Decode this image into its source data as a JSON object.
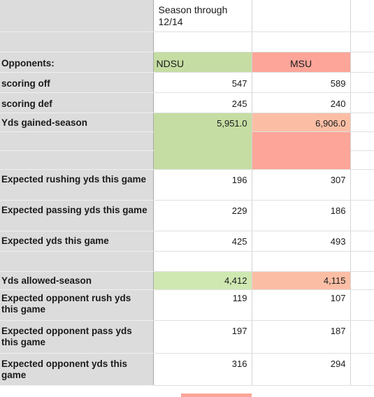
{
  "header": {
    "season_label": "Season through\n12/14"
  },
  "teams": {
    "team1": "NDSU",
    "team2": "MSU"
  },
  "colors": {
    "team1_accent": "#c5dda2",
    "team2_accent": "#fca598",
    "label_column": "#dcdcdc"
  },
  "rows": {
    "opponents_label": "Opponents:",
    "scoring_off": {
      "label": "scoring off",
      "ndsu": "547",
      "msu": "589"
    },
    "scoring_def": {
      "label": "scoring def",
      "ndsu": "245",
      "msu": "240"
    },
    "yds_gained": {
      "label": "Yds gained-season",
      "ndsu": "5,951.0",
      "msu": "6,906.0"
    },
    "exp_rush": {
      "label": "Expected rushing yds this game",
      "ndsu": "196",
      "msu": "307"
    },
    "exp_pass": {
      "label": "Expected passing yds this game",
      "ndsu": "229",
      "msu": "186"
    },
    "exp_yds": {
      "label": "Expected yds this game",
      "ndsu": "425",
      "msu": "493"
    },
    "yds_allowed": {
      "label": "Yds allowed-season",
      "ndsu": "4,412",
      "msu": "4,115"
    },
    "exp_opp_rush": {
      "label": "Expected opponent rush yds this game",
      "ndsu": "119",
      "msu": "107"
    },
    "exp_opp_pass": {
      "label": "Expected opponent pass yds this game",
      "ndsu": "197",
      "msu": "187"
    },
    "exp_opp_yds": {
      "label": "Expected opponent yds this game",
      "ndsu": "316",
      "msu": "294"
    }
  }
}
